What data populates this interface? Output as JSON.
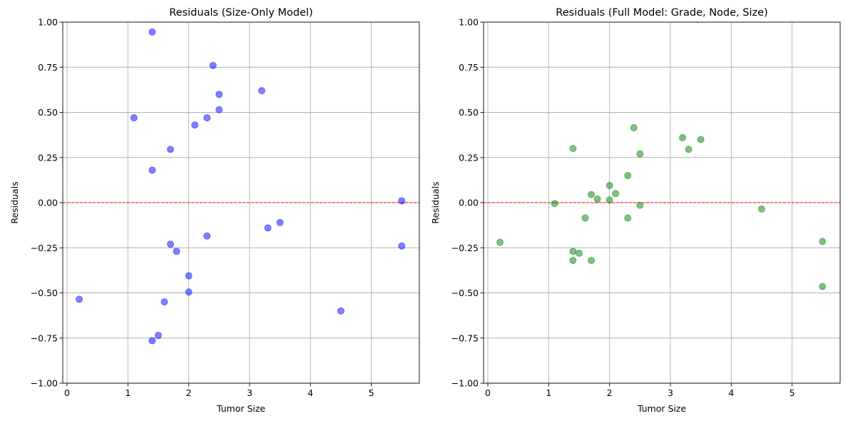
{
  "chart_data": [
    {
      "type": "scatter",
      "title": "Residuals (Size-Only Model)",
      "xlabel": "Tumor Size",
      "ylabel": "Residuals",
      "xlim": [
        -0.07,
        5.79
      ],
      "ylim": [
        -1.0,
        1.0
      ],
      "xticks": [
        "0",
        "1",
        "2",
        "3",
        "4",
        "5"
      ],
      "yticks": [
        "−1.00",
        "−0.75",
        "−0.50",
        "−0.25",
        "0.00",
        "0.25",
        "0.50",
        "0.75",
        "1.00"
      ],
      "grid": true,
      "reference_line": {
        "y": 0.0,
        "color": "#ff0000",
        "style": "dashed"
      },
      "marker_color": "#0000ff",
      "points": [
        {
          "x": 0.2,
          "y": -0.535
        },
        {
          "x": 1.1,
          "y": 0.47
        },
        {
          "x": 1.4,
          "y": 0.945
        },
        {
          "x": 1.4,
          "y": 0.18
        },
        {
          "x": 1.4,
          "y": -0.765
        },
        {
          "x": 1.5,
          "y": -0.735
        },
        {
          "x": 1.6,
          "y": -0.55
        },
        {
          "x": 1.7,
          "y": 0.295
        },
        {
          "x": 1.7,
          "y": -0.23
        },
        {
          "x": 1.8,
          "y": -0.27
        },
        {
          "x": 2.0,
          "y": -0.405
        },
        {
          "x": 2.0,
          "y": -0.495
        },
        {
          "x": 2.1,
          "y": 0.43
        },
        {
          "x": 2.3,
          "y": 0.47
        },
        {
          "x": 2.3,
          "y": -0.185
        },
        {
          "x": 2.4,
          "y": 0.76
        },
        {
          "x": 2.5,
          "y": 0.6
        },
        {
          "x": 2.5,
          "y": 0.515
        },
        {
          "x": 3.2,
          "y": 0.62
        },
        {
          "x": 3.3,
          "y": -0.14
        },
        {
          "x": 3.5,
          "y": -0.11
        },
        {
          "x": 4.5,
          "y": -0.6
        },
        {
          "x": 5.5,
          "y": 0.01
        },
        {
          "x": 5.5,
          "y": -0.24
        }
      ]
    },
    {
      "type": "scatter",
      "title": "Residuals (Full Model: Grade, Node, Size)",
      "xlabel": "Tumor Size",
      "ylabel": "Residuals",
      "xlim": [
        -0.07,
        5.79
      ],
      "ylim": [
        -1.0,
        1.0
      ],
      "xticks": [
        "0",
        "1",
        "2",
        "3",
        "4",
        "5"
      ],
      "yticks": [
        "−1.00",
        "−0.75",
        "−0.50",
        "−0.25",
        "0.00",
        "0.25",
        "0.50",
        "0.75",
        "1.00"
      ],
      "grid": true,
      "reference_line": {
        "y": 0.0,
        "color": "#ff0000",
        "style": "dashed"
      },
      "marker_color": "#008000",
      "points": [
        {
          "x": 0.2,
          "y": -0.22
        },
        {
          "x": 1.1,
          "y": -0.005
        },
        {
          "x": 1.4,
          "y": 0.3
        },
        {
          "x": 1.4,
          "y": -0.27
        },
        {
          "x": 1.4,
          "y": -0.32
        },
        {
          "x": 1.5,
          "y": -0.28
        },
        {
          "x": 1.6,
          "y": -0.085
        },
        {
          "x": 1.7,
          "y": 0.045
        },
        {
          "x": 1.7,
          "y": -0.32
        },
        {
          "x": 1.8,
          "y": 0.02
        },
        {
          "x": 2.0,
          "y": 0.095
        },
        {
          "x": 2.0,
          "y": 0.015
        },
        {
          "x": 2.1,
          "y": 0.05
        },
        {
          "x": 2.3,
          "y": 0.15
        },
        {
          "x": 2.3,
          "y": -0.085
        },
        {
          "x": 2.4,
          "y": 0.415
        },
        {
          "x": 2.5,
          "y": 0.27
        },
        {
          "x": 2.5,
          "y": -0.015
        },
        {
          "x": 3.2,
          "y": 0.36
        },
        {
          "x": 3.3,
          "y": 0.295
        },
        {
          "x": 3.5,
          "y": 0.35
        },
        {
          "x": 4.5,
          "y": -0.035
        },
        {
          "x": 5.5,
          "y": -0.215
        },
        {
          "x": 5.5,
          "y": -0.465
        }
      ]
    }
  ]
}
